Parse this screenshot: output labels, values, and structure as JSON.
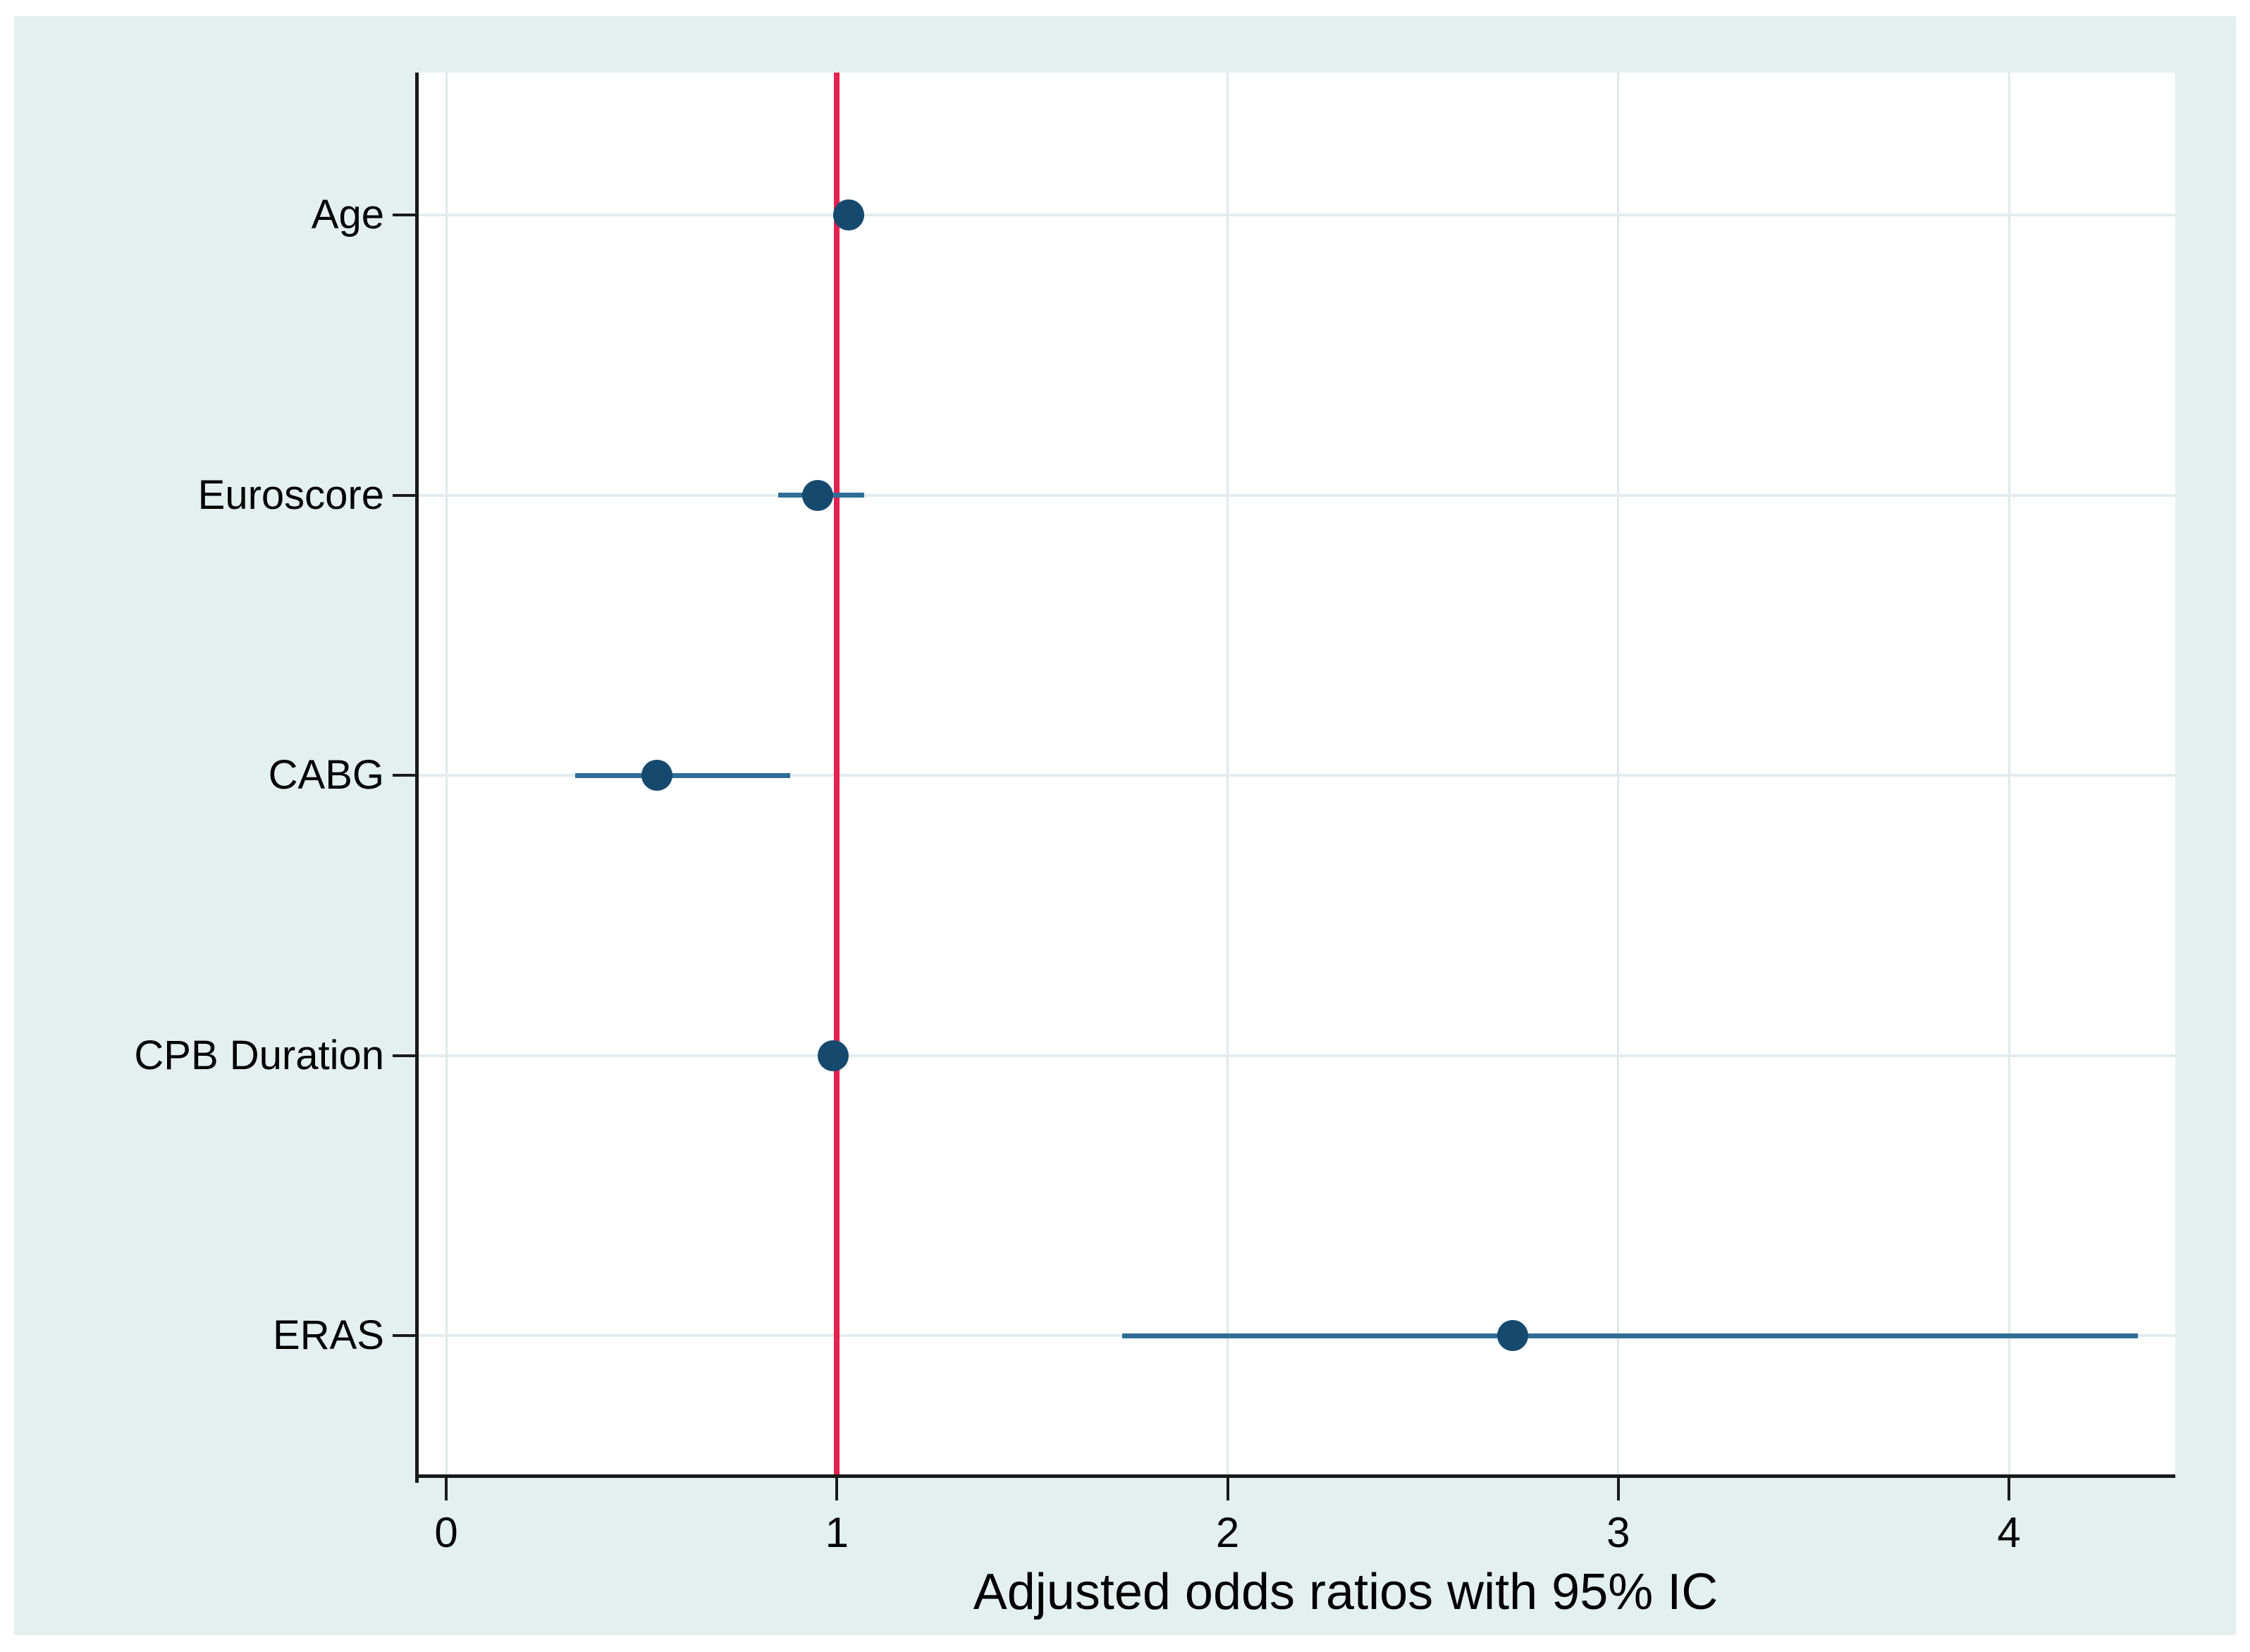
{
  "figure": {
    "outer_background": "#ffffff",
    "panel_background": "#e4f0f0",
    "plot_background": "#ffffff",
    "grid_color": "#dfe9ec",
    "axis_color": "#1a1a1a",
    "text_color": "#000000",
    "reference_line_color": "#e8204e",
    "ci_line_color": "#2e6e96",
    "marker_color": "#15496e"
  },
  "chart_data": {
    "type": "scatter",
    "subtype": "forest-plot",
    "title": "",
    "xlabel": "Adjusted odds ratios with 95% IC",
    "ylabel": "",
    "xlim": [
      -0.08,
      4.42
    ],
    "x_ticks": [
      0,
      1,
      2,
      3,
      4
    ],
    "x_tick_labels": [
      "0",
      "1",
      "2",
      "3",
      "4"
    ],
    "reference_line_x": 1,
    "grid": true,
    "legend": "none",
    "categories": [
      "Age",
      "Euroscore",
      "CABG",
      "CPB Duration",
      "ERAS"
    ],
    "series": [
      {
        "name": "Adjusted odds ratio with 95% CI",
        "points": [
          {
            "label": "Age",
            "or": 1.03,
            "ci_low": 0.99,
            "ci_high": 1.07
          },
          {
            "label": "Euroscore",
            "or": 0.95,
            "ci_low": 0.85,
            "ci_high": 1.07
          },
          {
            "label": "CABG",
            "or": 0.54,
            "ci_low": 0.33,
            "ci_high": 0.88
          },
          {
            "label": "CPB Duration",
            "or": 0.99,
            "ci_low": 0.96,
            "ci_high": 1.02
          },
          {
            "label": "ERAS",
            "or": 2.73,
            "ci_low": 1.73,
            "ci_high": 4.33
          }
        ]
      }
    ]
  }
}
